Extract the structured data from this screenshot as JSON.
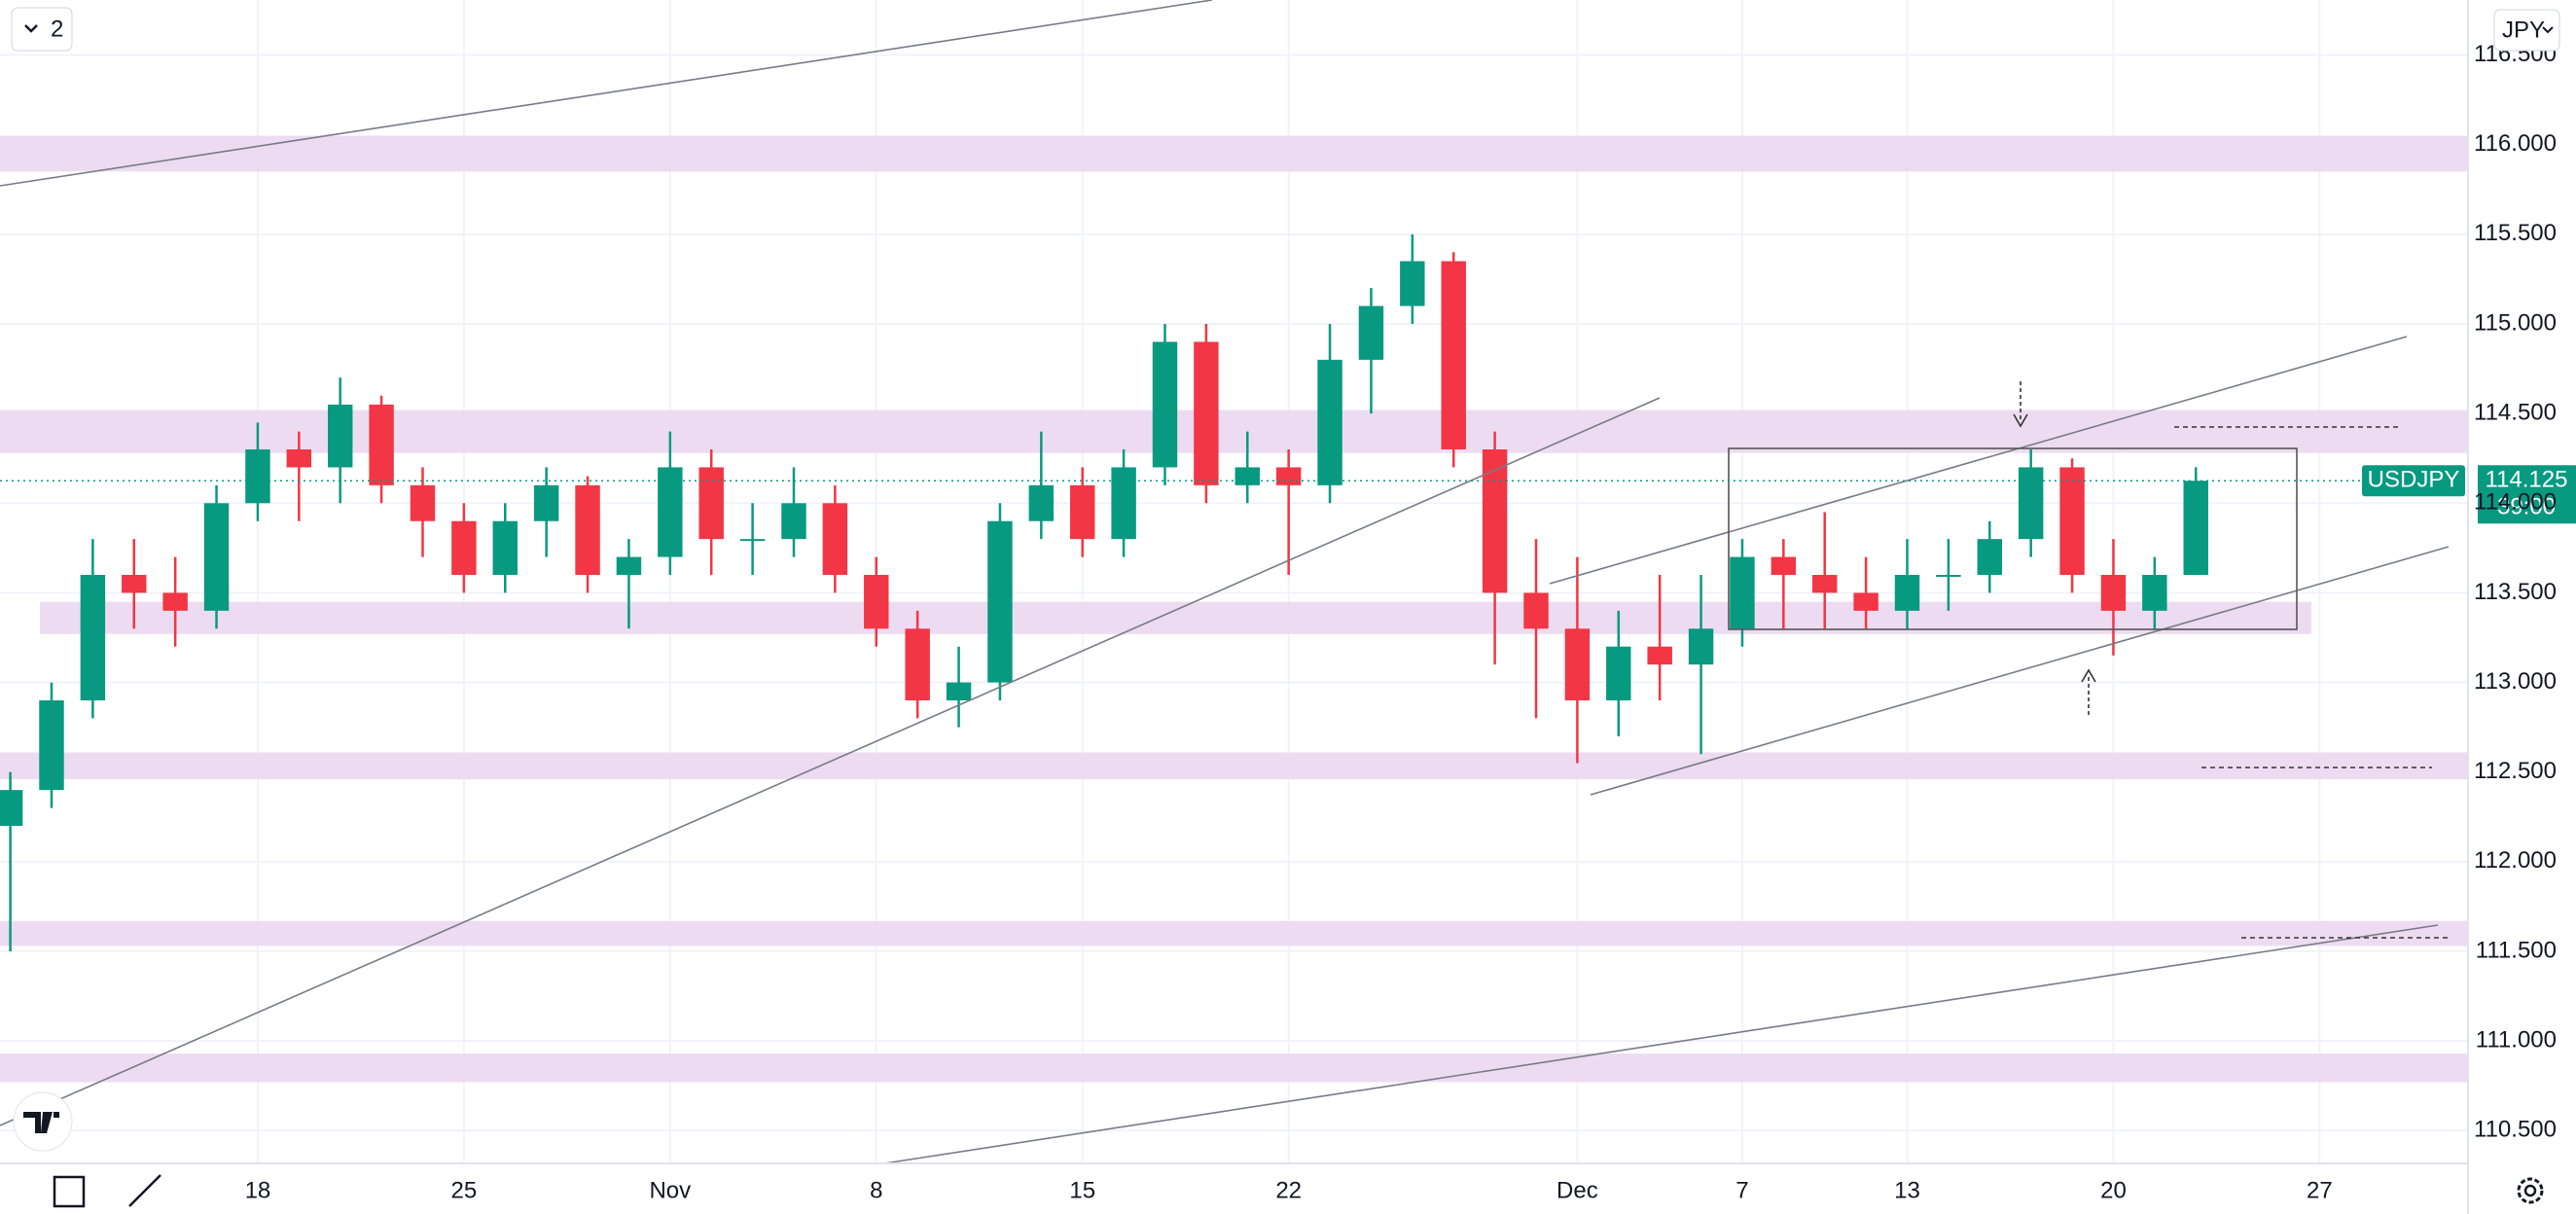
{
  "chart_data": {
    "type": "candlestick",
    "series": [
      {
        "name": "USDJPY",
        "up_color": "#089981",
        "down_color": "#f23645",
        "x": [
          -6,
          -5,
          -4,
          -3,
          -2,
          -1,
          0,
          1,
          2,
          3,
          4,
          5,
          6,
          7,
          8,
          9,
          10,
          11,
          12,
          13,
          14,
          15,
          16,
          17,
          18,
          19,
          20,
          21,
          22,
          23,
          24,
          25,
          26,
          27,
          28,
          29,
          30,
          31,
          32,
          33,
          34,
          35,
          36,
          37,
          38,
          39,
          40,
          41,
          42,
          43,
          44,
          45,
          46,
          47
        ],
        "open": [
          112.2,
          112.4,
          112.9,
          113.6,
          113.5,
          113.4,
          114.0,
          114.3,
          114.2,
          114.55,
          114.1,
          113.9,
          113.6,
          113.9,
          114.1,
          113.6,
          113.7,
          114.2,
          113.8,
          113.8,
          114.0,
          113.6,
          113.3,
          112.9,
          113.0,
          113.9,
          114.1,
          113.8,
          114.2,
          114.9,
          114.1,
          114.2,
          114.1,
          114.8,
          115.1,
          115.35,
          114.3,
          113.5,
          113.3,
          112.9,
          113.2,
          113.1,
          113.3,
          113.7,
          113.6,
          113.5,
          113.4,
          113.6,
          113.6,
          113.8,
          114.2,
          113.6,
          113.4,
          113.6
        ],
        "high": [
          112.5,
          113.0,
          113.8,
          113.8,
          113.7,
          114.1,
          114.45,
          114.4,
          114.7,
          114.6,
          114.2,
          114.0,
          114.0,
          114.2,
          114.15,
          113.8,
          114.4,
          114.3,
          114.0,
          114.2,
          114.1,
          113.7,
          113.4,
          113.2,
          114.0,
          114.4,
          114.2,
          114.3,
          115.0,
          115.0,
          114.4,
          114.3,
          115.0,
          115.2,
          115.5,
          115.4,
          114.4,
          113.8,
          113.7,
          113.4,
          113.6,
          113.6,
          113.8,
          113.8,
          113.95,
          113.7,
          113.8,
          113.8,
          113.9,
          114.3,
          114.25,
          113.8,
          113.7,
          114.2
        ],
        "low": [
          111.5,
          112.3,
          112.8,
          113.3,
          113.2,
          113.3,
          113.9,
          113.9,
          114.0,
          114.0,
          113.7,
          113.5,
          113.5,
          113.7,
          113.5,
          113.3,
          113.6,
          113.6,
          113.6,
          113.7,
          113.5,
          113.2,
          112.8,
          112.75,
          112.9,
          113.8,
          113.7,
          113.7,
          114.1,
          114.0,
          114.0,
          113.6,
          114.0,
          114.5,
          115.0,
          114.2,
          113.1,
          112.8,
          112.55,
          112.7,
          112.9,
          112.6,
          113.2,
          113.3,
          113.3,
          113.3,
          113.3,
          113.4,
          113.5,
          113.7,
          113.5,
          113.15,
          113.3,
          113.6
        ],
        "close": [
          112.4,
          112.9,
          113.6,
          113.5,
          113.4,
          114.0,
          114.3,
          114.2,
          114.55,
          114.1,
          113.9,
          113.6,
          113.9,
          114.1,
          113.6,
          113.7,
          114.2,
          113.8,
          113.8,
          114.0,
          113.6,
          113.3,
          112.9,
          113.0,
          113.9,
          114.1,
          113.8,
          114.2,
          114.9,
          114.1,
          114.2,
          114.1,
          114.8,
          115.1,
          115.35,
          114.3,
          113.5,
          113.3,
          112.9,
          113.2,
          113.1,
          113.3,
          113.7,
          113.6,
          113.5,
          113.4,
          113.6,
          113.6,
          113.8,
          114.2,
          113.6,
          113.4,
          113.6,
          114.125
        ]
      }
    ],
    "last_price": {
      "value": 114.125,
      "label": "114.125"
    },
    "countdown": "39:00",
    "xlim": [
      -6.25,
      53.6
    ],
    "xticks": [
      {
        "value": 0,
        "label": "18"
      },
      {
        "value": 5,
        "label": "25"
      },
      {
        "value": 10,
        "label": "Nov"
      },
      {
        "value": 15,
        "label": "8"
      },
      {
        "value": 20,
        "label": "15"
      },
      {
        "value": 25,
        "label": "22"
      },
      {
        "value": 32,
        "label": "Dec"
      },
      {
        "value": 36,
        "label": "7"
      },
      {
        "value": 40,
        "label": "13"
      },
      {
        "value": 45,
        "label": "20"
      },
      {
        "value": 50,
        "label": "27"
      }
    ],
    "ylim": [
      110.317,
      116.807
    ],
    "yticks": [
      {
        "value": 110.5,
        "label": "110.500"
      },
      {
        "value": 111,
        "label": "111.000"
      },
      {
        "value": 111.5,
        "label": "111.500"
      },
      {
        "value": 112,
        "label": "112.000"
      },
      {
        "value": 112.5,
        "label": "112.500"
      },
      {
        "value": 113,
        "label": "113.000"
      },
      {
        "value": 113.5,
        "label": "113.500"
      },
      {
        "value": 114,
        "label": "114.000"
      },
      {
        "value": 114.5,
        "label": "114.500"
      },
      {
        "value": 115,
        "label": "115.000"
      },
      {
        "value": 115.5,
        "label": "115.500"
      },
      {
        "value": 116,
        "label": "116.000"
      },
      {
        "value": 116.5,
        "label": "116.500"
      }
    ],
    "grid": true,
    "zone_color": "#ead6ef",
    "zones": [
      [
        115.85,
        116.05
      ],
      [
        114.28,
        114.52
      ],
      [
        113.27,
        113.45
      ],
      [
        112.46,
        112.61
      ],
      [
        111.53,
        111.67
      ],
      [
        110.77,
        110.93
      ]
    ]
  },
  "toolbar": {
    "layout_count": "2",
    "currency": "JPY"
  }
}
